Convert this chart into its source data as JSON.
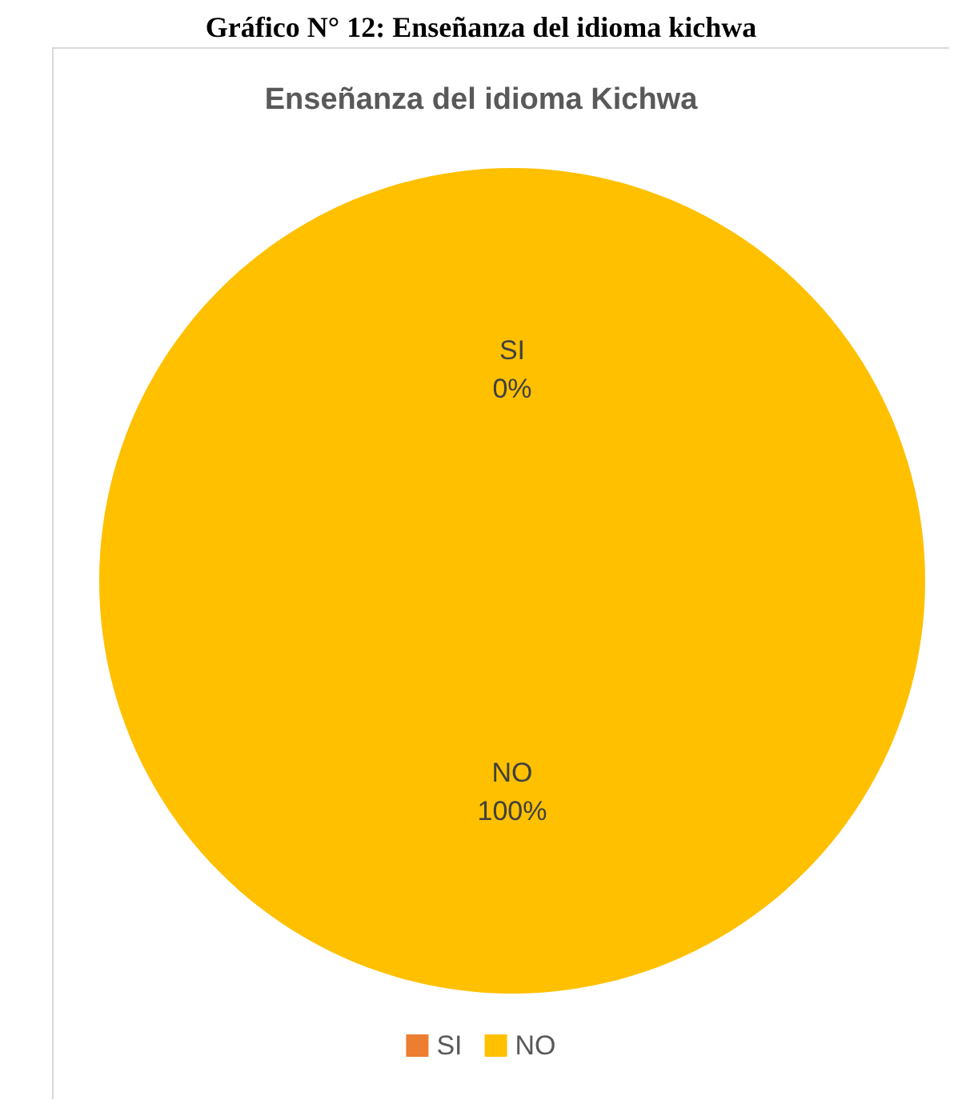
{
  "chart_data": {
    "type": "pie",
    "title": "Enseñanza del idioma Kichwa",
    "annotations": [
      "Gráfico N° 12: Enseñanza del idioma kichwa"
    ],
    "categories": [
      "SI",
      "NO"
    ],
    "values": [
      0,
      100
    ],
    "colors": [
      "#ed7d31",
      "#ffc000"
    ],
    "value_labels": [
      "0%",
      "100%"
    ],
    "legend": "bottom"
  }
}
